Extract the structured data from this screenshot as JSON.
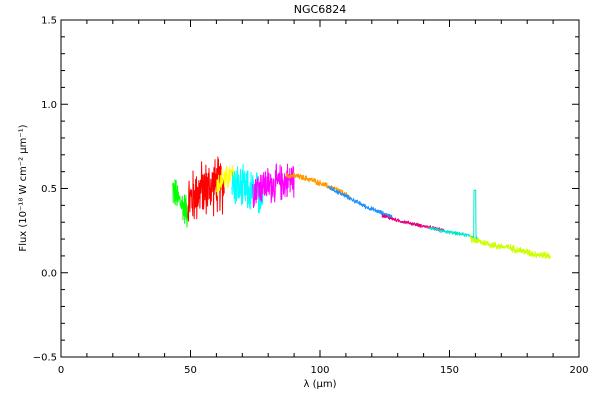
{
  "chart_data": {
    "type": "line",
    "title": "NGC6824",
    "xlabel": "λ (µm)",
    "ylabel": "Flux (10⁻¹⁸ W cm⁻² µm⁻¹)",
    "xlim": [
      0,
      200
    ],
    "ylim": [
      -0.5,
      1.5
    ],
    "xticks": [
      0,
      50,
      100,
      150,
      200
    ],
    "yticks": [
      -0.5,
      0.0,
      0.5,
      1.0,
      1.5
    ],
    "xtick_labels": [
      "0",
      "50",
      "100",
      "150",
      "200"
    ],
    "ytick_labels": [
      "−0.5",
      "0.0",
      "0.5",
      "1.0",
      "1.5"
    ],
    "grid": false,
    "legend": "none",
    "series": [
      {
        "color": "#00ff00",
        "noise": 0.12,
        "x": [
          43,
          44,
          45,
          46,
          47,
          48,
          49
        ],
        "y": [
          0.5,
          0.47,
          0.44,
          0.42,
          0.4,
          0.38,
          0.36
        ]
      },
      {
        "color": "#ff0000",
        "noise": 0.2,
        "x": [
          49,
          51,
          53,
          55,
          57,
          59,
          61,
          63
        ],
        "y": [
          0.42,
          0.45,
          0.48,
          0.5,
          0.5,
          0.52,
          0.52,
          0.52
        ]
      },
      {
        "color": "#ffff00",
        "noise": 0.09,
        "x": [
          60,
          62,
          64,
          66,
          68
        ],
        "y": [
          0.52,
          0.55,
          0.56,
          0.58,
          0.55
        ]
      },
      {
        "color": "#00ffff",
        "noise": 0.16,
        "x": [
          66,
          69,
          72,
          75,
          78
        ],
        "y": [
          0.52,
          0.5,
          0.48,
          0.47,
          0.46
        ]
      },
      {
        "color": "#ff00ff",
        "noise": 0.13,
        "x": [
          74,
          78,
          82,
          86,
          90
        ],
        "y": [
          0.5,
          0.52,
          0.52,
          0.54,
          0.56
        ]
      },
      {
        "color": "#ff9900",
        "noise": 0.02,
        "x": [
          87,
          92,
          97,
          102,
          107,
          112
        ],
        "y": [
          0.58,
          0.57,
          0.55,
          0.52,
          0.49,
          0.44
        ]
      },
      {
        "color": "#1e90ff",
        "noise": 0.015,
        "x": [
          103,
          108,
          113,
          118,
          123,
          128
        ],
        "y": [
          0.51,
          0.47,
          0.43,
          0.39,
          0.36,
          0.33
        ]
      },
      {
        "color": "#e6007e",
        "noise": 0.012,
        "x": [
          124,
          130,
          136,
          142,
          148
        ],
        "y": [
          0.34,
          0.31,
          0.29,
          0.27,
          0.25
        ]
      },
      {
        "color": "#00e5cc",
        "noise": 0.012,
        "x": [
          142,
          146,
          150,
          154,
          158,
          161
        ],
        "y": [
          0.27,
          0.25,
          0.24,
          0.23,
          0.22,
          0.2
        ],
        "spike": {
          "x": 159.8,
          "y": 0.49
        }
      },
      {
        "color": "#ccff00",
        "noise": 0.025,
        "x": [
          158,
          163,
          168,
          173,
          178,
          183,
          189
        ],
        "y": [
          0.2,
          0.18,
          0.16,
          0.15,
          0.13,
          0.11,
          0.1
        ]
      }
    ]
  }
}
